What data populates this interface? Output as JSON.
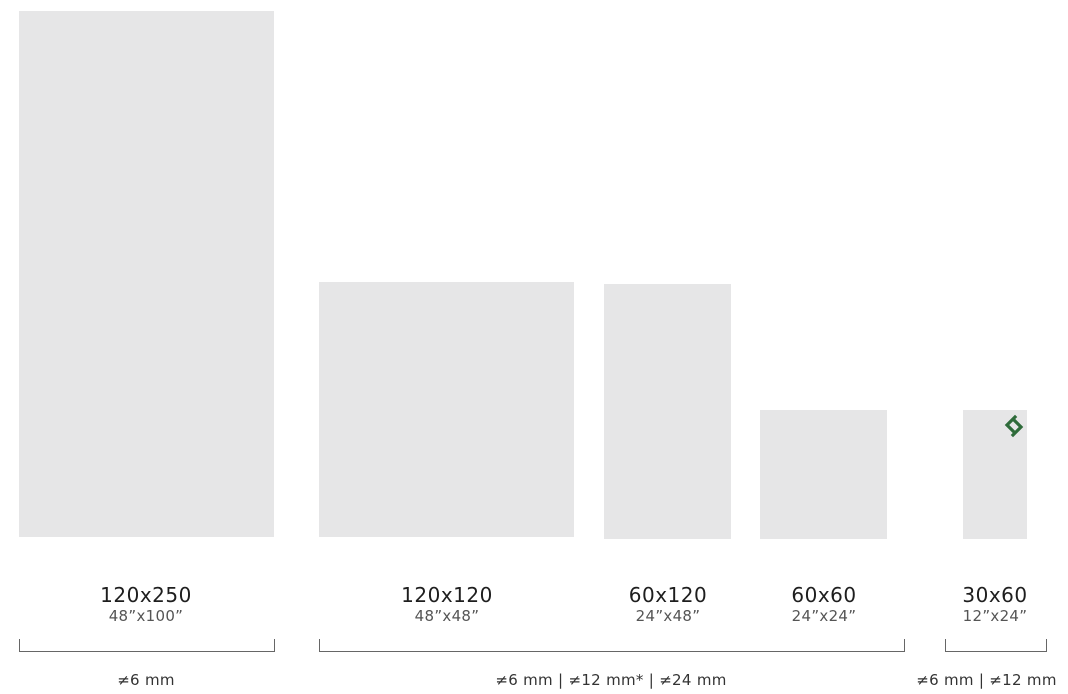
{
  "tiles": [
    {
      "size": "120x250",
      "inches": "48”x100”"
    },
    {
      "size": "120x120",
      "inches": "48”x48”"
    },
    {
      "size": "60x120",
      "inches": "24”x48”"
    },
    {
      "size": "60x60",
      "inches": "24”x24”"
    },
    {
      "size": "30x60",
      "inches": "12”x24”"
    }
  ],
  "thickness_groups": [
    {
      "label": "≠6 mm"
    },
    {
      "label": "≠6 mm | ≠12 mm* | ≠24 mm"
    },
    {
      "label": "≠6 mm | ≠12 mm"
    }
  ],
  "colors": {
    "tile": "#e6e6e7",
    "logo": "#2e6b3a"
  },
  "logo_icon": "brand-s-logo"
}
